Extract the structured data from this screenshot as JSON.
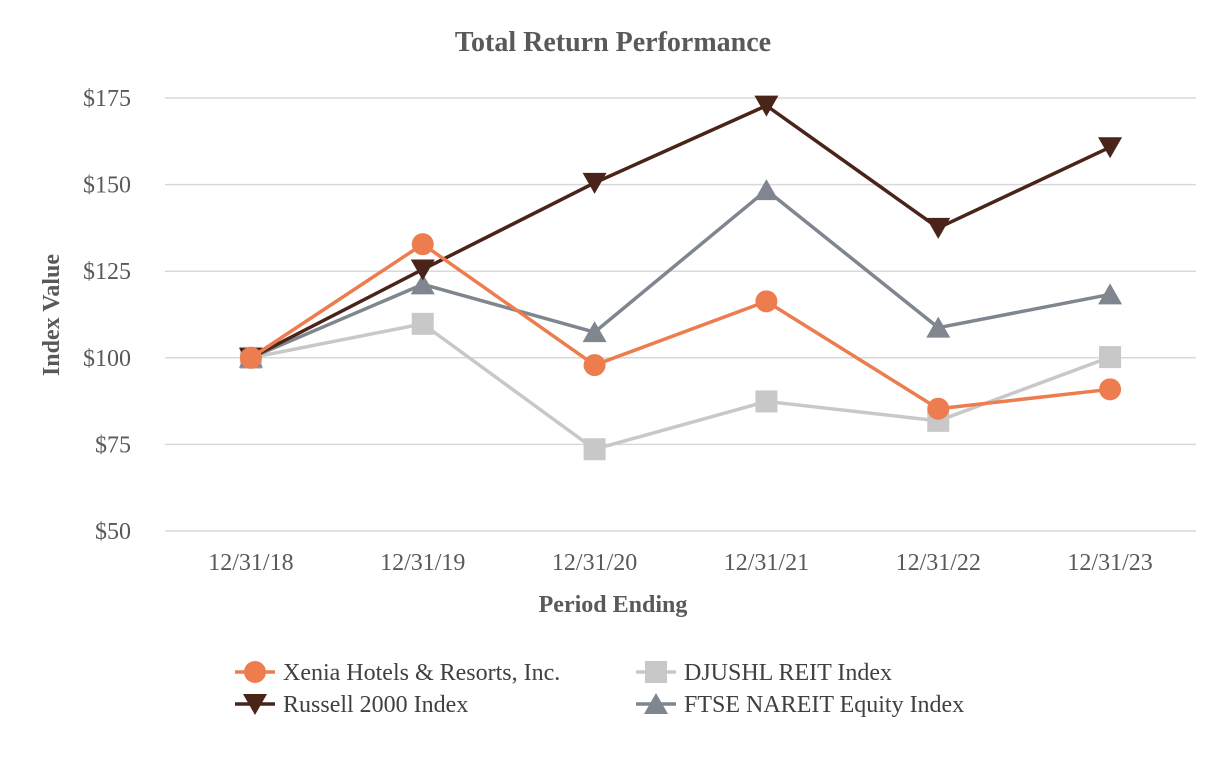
{
  "chart_data": {
    "type": "line",
    "title": "Total Return Performance",
    "xlabel": "Period Ending",
    "ylabel": "Index Value",
    "categories": [
      "12/31/18",
      "12/31/19",
      "12/31/20",
      "12/31/21",
      "12/31/22",
      "12/31/23"
    ],
    "ylim": [
      50,
      175
    ],
    "yticks": [
      50,
      75,
      100,
      125,
      150,
      175
    ],
    "ytick_labels": [
      "$50",
      "$75",
      "$100",
      "$125",
      "$150",
      "$175"
    ],
    "grid": true,
    "legend_position": "bottom",
    "series": [
      {
        "name": "Xenia Hotels & Resorts, Inc.",
        "marker": "circle",
        "color": "#ED7D4F",
        "values": [
          100,
          132.8,
          97.9,
          116.3,
          85.3,
          90.9
        ]
      },
      {
        "name": "DJUSHL REIT Index",
        "marker": "square",
        "color": "#C8C8C8",
        "values": [
          100,
          109.8,
          73.6,
          87.4,
          81.8,
          100.2
        ]
      },
      {
        "name": "Russell 2000 Index",
        "marker": "triangle-down",
        "color": "#4A2419",
        "values": [
          100,
          125.5,
          150.5,
          172.8,
          137.5,
          160.8
        ]
      },
      {
        "name": "FTSE NAREIT Equity Index",
        "marker": "triangle-up",
        "color": "#7F8690",
        "values": [
          100,
          121.2,
          107.4,
          148.4,
          108.7,
          118.3
        ]
      }
    ]
  }
}
